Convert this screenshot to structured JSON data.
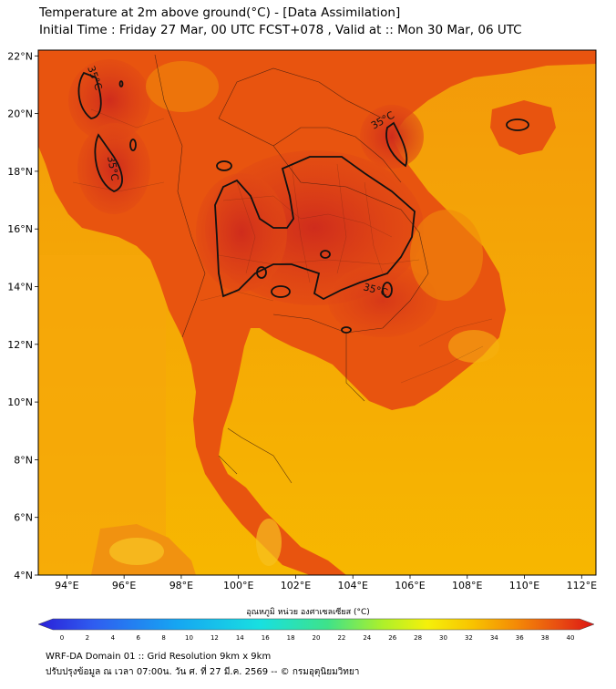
{
  "title": {
    "line1": "Temperature at 2m above ground(°C) - [Data Assimilation]",
    "line2": "Initial Time : Friday 27 Mar, 00 UTC FCST+078 , Valid at :: Mon 30 Mar, 06 UTC"
  },
  "map": {
    "lon_range": [
      93,
      112.5
    ],
    "lat_range": [
      4,
      22.2
    ],
    "lon_ticks": [
      "94°E",
      "96°E",
      "98°E",
      "100°E",
      "102°E",
      "104°E",
      "106°E",
      "108°E",
      "110°E",
      "112°E"
    ],
    "lat_ticks": [
      "4°N",
      "6°N",
      "8°N",
      "10°N",
      "12°N",
      "14°N",
      "16°N",
      "18°N",
      "20°N",
      "22°N"
    ],
    "contour_labels": [
      {
        "text": "35°C",
        "where": "northern Myanmar"
      },
      {
        "text": "35°C",
        "where": "central Myanmar"
      },
      {
        "text": "35°C",
        "where": "northern Vietnam"
      },
      {
        "text": "35°C",
        "where": "Cambodia-Thailand border"
      }
    ],
    "land_color": "#e8440f",
    "hot_color": "#d4321e",
    "sea_color": "#f7b400"
  },
  "colorbar": {
    "label": "อุณหภูมิ หน่วย องศาเซลเซียส (°C)",
    "ticks": [
      "0",
      "2",
      "4",
      "6",
      "8",
      "10",
      "12",
      "14",
      "16",
      "18",
      "20",
      "22",
      "24",
      "26",
      "28",
      "30",
      "32",
      "34",
      "36",
      "38",
      "40"
    ],
    "min": 0,
    "max": 40
  },
  "footer": {
    "line1": "WRF-DA Domain 01 :: Grid Resolution 9km x 9km",
    "line2": "ปรับปรุงข้อมูล ณ เวลา 07:00น. วัน ศ. ที่ 27 มี.ค. 2569 -- © กรมอุตุนิยมวิทยา"
  }
}
